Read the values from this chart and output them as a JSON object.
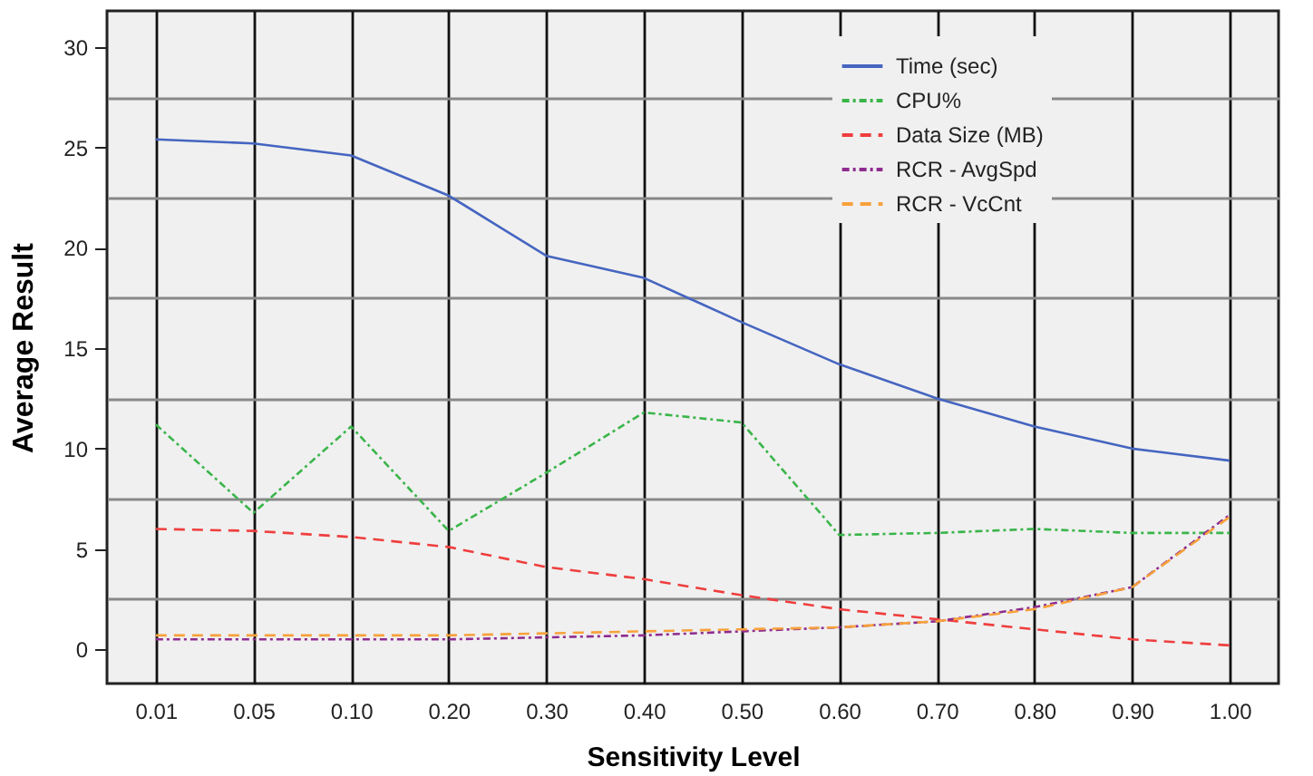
{
  "chart_data": {
    "type": "line",
    "xlabel": "Sensitivity Level",
    "ylabel": "Average Result",
    "categories": [
      "0.01",
      "0.05",
      "0.10",
      "0.20",
      "0.30",
      "0.40",
      "0.50",
      "0.60",
      "0.70",
      "0.80",
      "0.90",
      "1.00"
    ],
    "series": [
      {
        "name": "Time (sec)",
        "color": "#4565c0",
        "line_style": "solid",
        "values": [
          25.4,
          25.2,
          24.6,
          22.6,
          19.6,
          18.5,
          16.3,
          14.2,
          12.5,
          11.1,
          10.0,
          9.4
        ]
      },
      {
        "name": "CPU%",
        "color": "#3ab54a",
        "line_style": "dashdot",
        "values": [
          11.2,
          6.8,
          11.1,
          5.9,
          8.8,
          11.8,
          11.3,
          5.7,
          5.8,
          6.0,
          5.8,
          5.8
        ]
      },
      {
        "name": "Data Size (MB)",
        "color": "#ef3e3e",
        "line_style": "dashed",
        "values": [
          6.0,
          5.9,
          5.6,
          5.1,
          4.1,
          3.5,
          2.7,
          2.0,
          1.5,
          1.0,
          0.5,
          0.2
        ]
      },
      {
        "name": "RCR - AvgSpd",
        "color": "#8e2c8f",
        "line_style": "dashdot",
        "values": [
          0.5,
          0.5,
          0.5,
          0.5,
          0.6,
          0.7,
          0.9,
          1.1,
          1.4,
          2.1,
          3.1,
          6.7
        ]
      },
      {
        "name": "RCR - VcCnt",
        "color": "#f7a13b",
        "line_style": "dashed",
        "values": [
          0.7,
          0.7,
          0.7,
          0.7,
          0.8,
          0.9,
          1.0,
          1.1,
          1.4,
          2.0,
          3.1,
          6.6
        ]
      }
    ],
    "ylim": [
      -1.7,
      31.8
    ],
    "yticks": [
      0,
      5,
      10,
      15,
      20,
      25,
      30
    ],
    "grid": true,
    "legend": "top right",
    "marker": "none"
  }
}
